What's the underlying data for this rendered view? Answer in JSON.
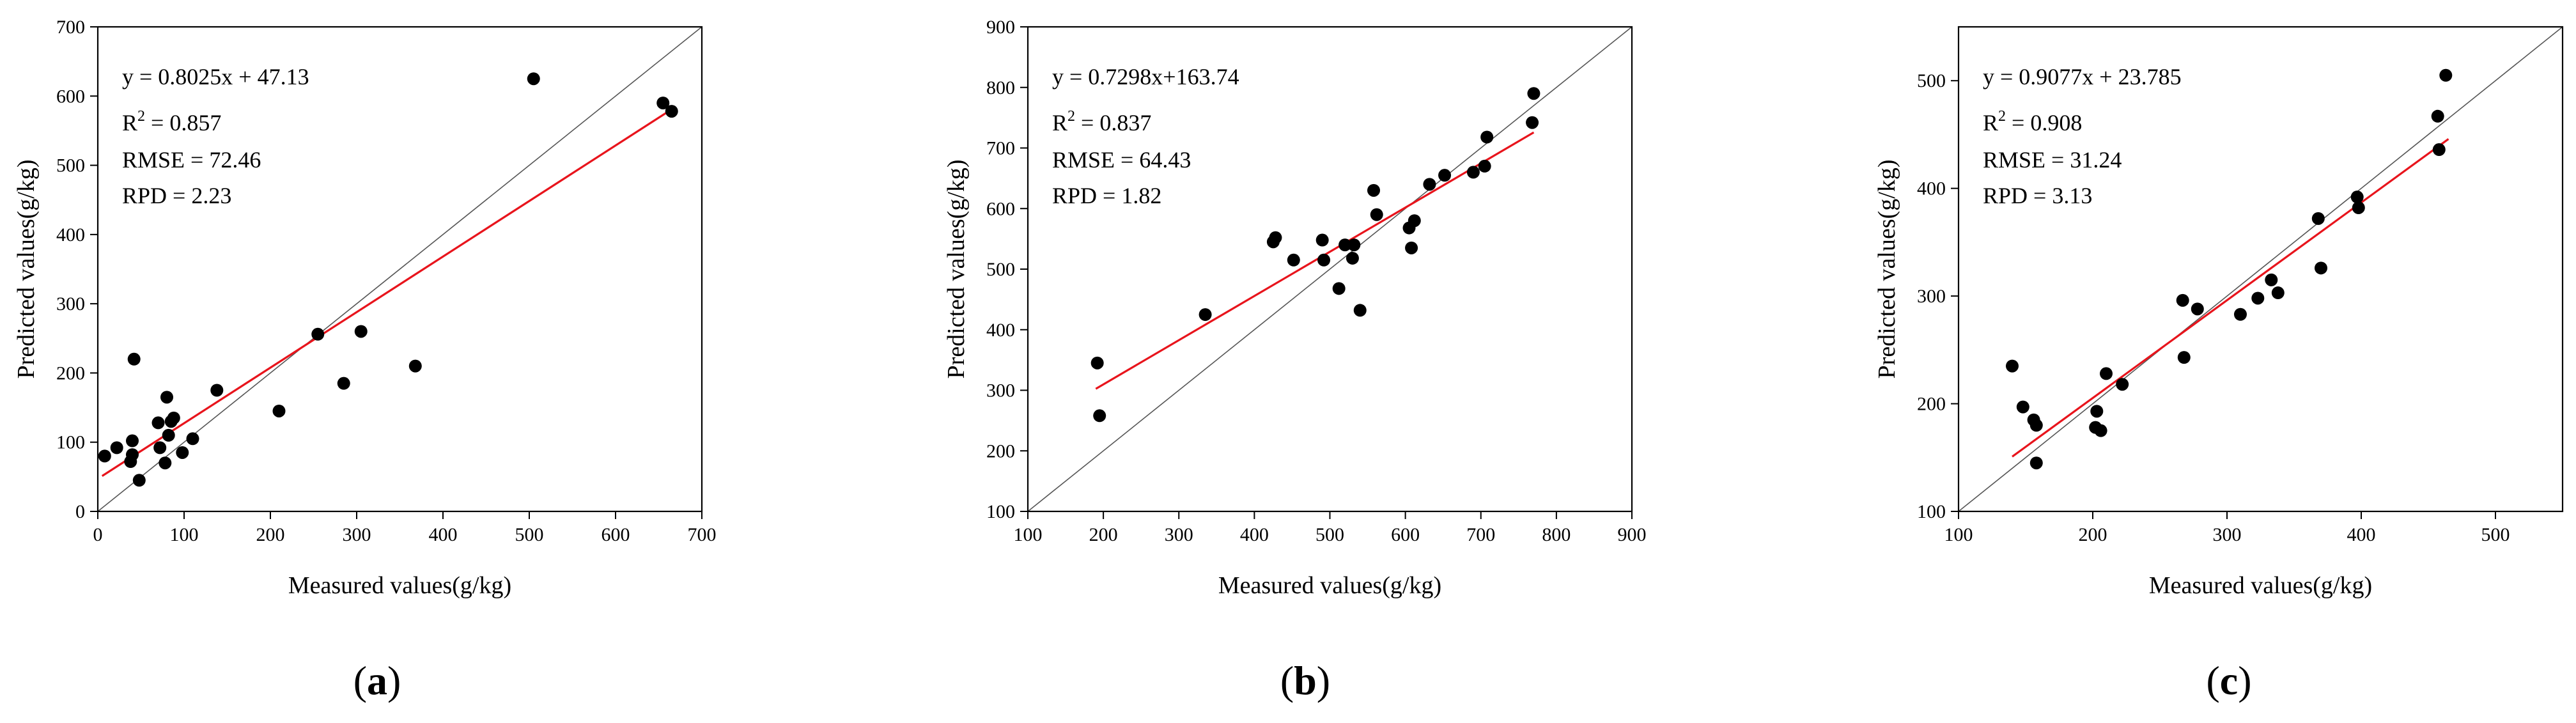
{
  "chart_data": [
    {
      "type": "scatter",
      "panel_label": "a",
      "xlabel": "Measured values(g/kg)",
      "ylabel": "Predicted values(g/kg)",
      "xlim": [
        0,
        700
      ],
      "ylim": [
        0,
        700
      ],
      "xticks": [
        0,
        100,
        200,
        300,
        400,
        500,
        600,
        700
      ],
      "yticks": [
        0,
        100,
        200,
        300,
        400,
        500,
        600,
        700
      ],
      "fit_line": {
        "slope": 0.8025,
        "intercept": 47.13,
        "x_range": [
          5,
          668
        ],
        "color": "#e8141c"
      },
      "identity_line": {
        "color": "#555555"
      },
      "annotations": {
        "equation": "y = 0.8025x + 47.13",
        "r2_prefix": "R",
        "r2_sup": "2",
        "r2_value": " = 0.857",
        "rmse": "RMSE = 72.46",
        "rpd": "RPD = 2.23"
      },
      "points": [
        [
          8,
          80
        ],
        [
          22,
          92
        ],
        [
          38,
          72
        ],
        [
          40,
          82
        ],
        [
          40,
          102
        ],
        [
          42,
          220
        ],
        [
          48,
          45
        ],
        [
          70,
          128
        ],
        [
          72,
          92
        ],
        [
          78,
          70
        ],
        [
          80,
          165
        ],
        [
          82,
          110
        ],
        [
          85,
          130
        ],
        [
          88,
          135
        ],
        [
          98,
          85
        ],
        [
          110,
          105
        ],
        [
          138,
          175
        ],
        [
          210,
          145
        ],
        [
          255,
          256
        ],
        [
          285,
          185
        ],
        [
          305,
          260
        ],
        [
          368,
          210
        ],
        [
          505,
          625
        ],
        [
          655,
          590
        ],
        [
          665,
          578
        ]
      ]
    },
    {
      "type": "scatter",
      "panel_label": "b",
      "xlabel": "Measured values(g/kg)",
      "ylabel": "Predicted values(g/kg)",
      "xlim": [
        100,
        900
      ],
      "ylim": [
        100,
        900
      ],
      "xticks": [
        100,
        200,
        300,
        400,
        500,
        600,
        700,
        800,
        900
      ],
      "yticks": [
        100,
        200,
        300,
        400,
        500,
        600,
        700,
        800,
        900
      ],
      "fit_line": {
        "slope": 0.7298,
        "intercept": 163.74,
        "x_range": [
          190,
          770
        ],
        "color": "#e8141c"
      },
      "identity_line": {
        "color": "#555555"
      },
      "annotations": {
        "equation": "y = 0.7298x+163.74",
        "r2_prefix": "R",
        "r2_sup": "2",
        "r2_value": " = 0.837",
        "rmse": "RMSE = 64.43",
        "rpd": "RPD = 1.82"
      },
      "points": [
        [
          192,
          345
        ],
        [
          195,
          258
        ],
        [
          335,
          425
        ],
        [
          425,
          545
        ],
        [
          428,
          552
        ],
        [
          452,
          515
        ],
        [
          490,
          548
        ],
        [
          492,
          515
        ],
        [
          512,
          468
        ],
        [
          520,
          540
        ],
        [
          530,
          518
        ],
        [
          532,
          540
        ],
        [
          540,
          432
        ],
        [
          558,
          630
        ],
        [
          562,
          590
        ],
        [
          605,
          568
        ],
        [
          608,
          535
        ],
        [
          612,
          580
        ],
        [
          632,
          640
        ],
        [
          652,
          655
        ],
        [
          690,
          660
        ],
        [
          705,
          670
        ],
        [
          708,
          718
        ],
        [
          768,
          742
        ],
        [
          770,
          790
        ]
      ]
    },
    {
      "type": "scatter",
      "panel_label": "c",
      "xlabel": "Measured values(g/kg)",
      "ylabel": "Predicted values(g/kg)",
      "xlim": [
        100,
        550
      ],
      "ylim": [
        100,
        550
      ],
      "xticks": [
        100,
        200,
        300,
        400,
        500
      ],
      "yticks": [
        100,
        200,
        300,
        400,
        500
      ],
      "fit_line": {
        "slope": 0.9077,
        "intercept": 23.785,
        "x_range": [
          140,
          465
        ],
        "color": "#e8141c"
      },
      "identity_line": {
        "color": "#555555"
      },
      "annotations": {
        "equation": "y = 0.9077x + 23.785",
        "r2_prefix": "R",
        "r2_sup": "2",
        "r2_value": " = 0.908",
        "rmse": "RMSE = 31.24",
        "rpd": "RPD = 3.13"
      },
      "points": [
        [
          140,
          235
        ],
        [
          148,
          197
        ],
        [
          156,
          185
        ],
        [
          158,
          145
        ],
        [
          158,
          180
        ],
        [
          202,
          178
        ],
        [
          203,
          193
        ],
        [
          206,
          175
        ],
        [
          210,
          228
        ],
        [
          222,
          218
        ],
        [
          267,
          296
        ],
        [
          268,
          243
        ],
        [
          278,
          288
        ],
        [
          310,
          283
        ],
        [
          323,
          298
        ],
        [
          333,
          315
        ],
        [
          338,
          303
        ],
        [
          368,
          372
        ],
        [
          370,
          326
        ],
        [
          397,
          392
        ],
        [
          398,
          382
        ],
        [
          457,
          467
        ],
        [
          458,
          436
        ],
        [
          463,
          505
        ]
      ]
    }
  ]
}
